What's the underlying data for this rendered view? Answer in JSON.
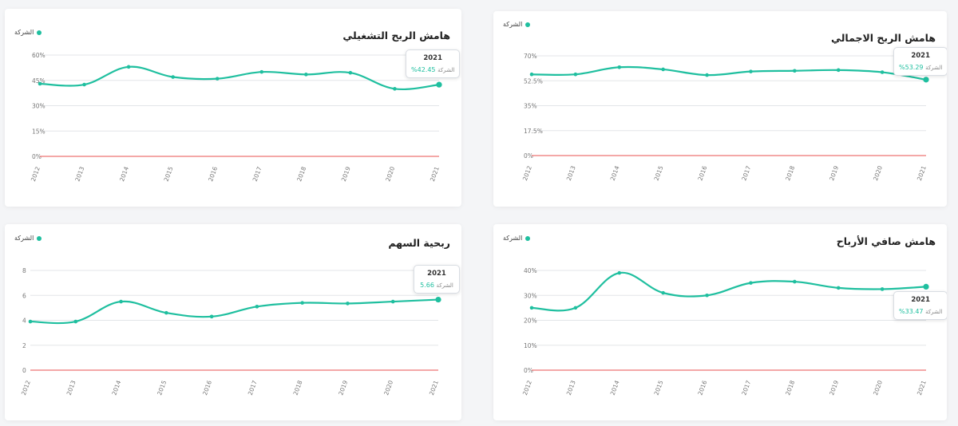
{
  "colors": {
    "line": "#1fbf9f",
    "zero": "#e8504f",
    "grid": "#e3e5e8",
    "axis_text": "#777777"
  },
  "legend_label": "الشركة",
  "chart_data": [
    {
      "id": "operating-margin",
      "type": "line",
      "title": "هامش الربح التشغيلي",
      "categories": [
        "2012",
        "2013",
        "2014",
        "2015",
        "2016",
        "2017",
        "2018",
        "2019",
        "2020",
        "2021"
      ],
      "series": [
        {
          "name": "الشركة",
          "values": [
            43,
            42.5,
            53,
            47,
            46,
            50,
            48.5,
            49.5,
            40,
            42.45
          ]
        }
      ],
      "ylim": [
        0,
        60
      ],
      "yticks": [
        0,
        15,
        30,
        45,
        60
      ],
      "ytick_labels": [
        "0%",
        "15%",
        "30%",
        "45%",
        "60%"
      ],
      "tooltip": {
        "year": "2021",
        "label": "الشركة",
        "value": "%42.45"
      }
    },
    {
      "id": "gross-margin",
      "type": "line",
      "title": "هامش الربح الاجمالي",
      "categories": [
        "2012",
        "2013",
        "2014",
        "2015",
        "2016",
        "2017",
        "2018",
        "2019",
        "2020",
        "2021"
      ],
      "series": [
        {
          "name": "الشركة",
          "values": [
            57,
            57,
            62,
            60.5,
            56.5,
            59,
            59.5,
            60,
            58.5,
            53.29
          ]
        }
      ],
      "ylim": [
        0,
        70
      ],
      "yticks": [
        0,
        17.5,
        35,
        52.5,
        70
      ],
      "ytick_labels": [
        "0%",
        "17.5%",
        "35%",
        "52.5%",
        "70%"
      ],
      "tooltip": {
        "year": "2021",
        "label": "الشركة",
        "value": "%53.29"
      }
    },
    {
      "id": "eps",
      "type": "line",
      "title": "ربحية السهم",
      "categories": [
        "2012",
        "2013",
        "2014",
        "2015",
        "2016",
        "2017",
        "2018",
        "2019",
        "2020",
        "2021"
      ],
      "series": [
        {
          "name": "الشركة",
          "values": [
            3.9,
            3.9,
            5.5,
            4.6,
            4.3,
            5.1,
            5.4,
            5.35,
            5.5,
            5.66
          ]
        }
      ],
      "ylim": [
        0,
        8
      ],
      "yticks": [
        0,
        2,
        4,
        6,
        8
      ],
      "ytick_labels": [
        "0",
        "2",
        "4",
        "6",
        "8"
      ],
      "tooltip": {
        "year": "2021",
        "label": "الشركة",
        "value": "5.66"
      }
    },
    {
      "id": "net-margin",
      "type": "line",
      "title": "هامش صافي الأرباح",
      "categories": [
        "2012",
        "2013",
        "2014",
        "2015",
        "2016",
        "2017",
        "2018",
        "2019",
        "2020",
        "2021"
      ],
      "series": [
        {
          "name": "الشركة",
          "values": [
            25,
            25,
            39,
            31,
            30,
            35,
            35.5,
            33,
            32.5,
            33.47
          ]
        }
      ],
      "ylim": [
        0,
        40
      ],
      "yticks": [
        0,
        10,
        20,
        30,
        40
      ],
      "ytick_labels": [
        "0%",
        "10%",
        "20%",
        "30%",
        "40%"
      ],
      "tooltip": {
        "year": "2021",
        "label": "الشركة",
        "value": "%33.47"
      }
    }
  ]
}
